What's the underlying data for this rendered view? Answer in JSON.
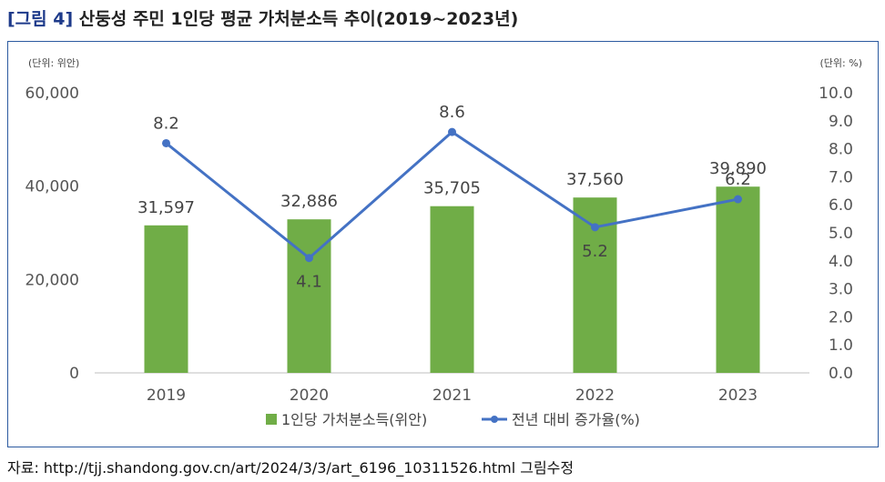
{
  "figure": {
    "label": "[그림 4]",
    "title": "산둥성 주민 1인당 평균 가처분소득 추이(2019~2023년)"
  },
  "source": "자료: http://tjj.shandong.gov.cn/art/2024/3/3/art_6196_10311526.html 그림수정",
  "chart_data": {
    "type": "bar",
    "categories": [
      "2019",
      "2020",
      "2021",
      "2022",
      "2023"
    ],
    "series": [
      {
        "name": "1인당 가처분소득(위안)",
        "type": "bar",
        "axis": "left",
        "values": [
          31597,
          32886,
          35705,
          37560,
          39890
        ],
        "labels": [
          "31,597",
          "32,886",
          "35,705",
          "37,560",
          "39,890"
        ],
        "color": "#70ad47"
      },
      {
        "name": "전년 대비 증가율(%)",
        "type": "line",
        "axis": "right",
        "values": [
          8.2,
          4.1,
          8.6,
          5.2,
          6.2
        ],
        "labels": [
          "8.2",
          "4.1",
          "8.6",
          "5.2",
          "6.2"
        ],
        "color": "#4472c4"
      }
    ],
    "left_axis": {
      "unit": "(단위: 위안)",
      "range": [
        0,
        60000
      ],
      "ticks": [
        0,
        20000,
        40000,
        60000
      ],
      "tick_labels": [
        "0",
        "20,000",
        "40,000",
        "60,000"
      ]
    },
    "right_axis": {
      "unit": "(단위: %)",
      "range": [
        0,
        10
      ],
      "ticks": [
        0,
        1,
        2,
        3,
        4,
        5,
        6,
        7,
        8,
        9,
        10
      ],
      "tick_labels": [
        "0.0",
        "1.0",
        "2.0",
        "3.0",
        "4.0",
        "5.0",
        "6.0",
        "7.0",
        "8.0",
        "9.0",
        "10.0"
      ]
    },
    "legend_position": "bottom",
    "grid": false
  }
}
